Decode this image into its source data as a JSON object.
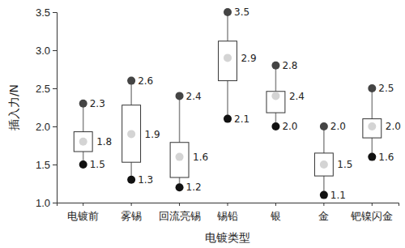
{
  "chart_data": {
    "type": "box",
    "x_label": "电镀类型",
    "y_label": "插入力/N",
    "categories": [
      "电镀前",
      "雾锡",
      "回流亮锡",
      "锡铅",
      "银",
      "金",
      "钯镍闪金"
    ],
    "max": {
      "values": [
        2.3,
        2.6,
        2.4,
        3.5,
        2.8,
        2.0,
        2.5
      ],
      "value_labels": [
        "2.3",
        "2.6",
        "2.4",
        "3.5",
        "2.8",
        "2.0",
        "2.5"
      ]
    },
    "mean": {
      "values": [
        1.8,
        1.9,
        1.6,
        2.9,
        2.4,
        1.5,
        2.0
      ],
      "value_labels": [
        "1.8",
        "1.9",
        "1.6",
        "2.9",
        "2.4",
        "1.5",
        "2.0"
      ]
    },
    "min": {
      "values": [
        1.5,
        1.3,
        1.2,
        2.1,
        2.0,
        1.1,
        1.6
      ],
      "value_labels": [
        "1.5",
        "1.3",
        "1.2",
        "2.1",
        "2.0",
        "1.1",
        "1.6"
      ]
    },
    "q1": [
      1.67,
      1.53,
      1.33,
      2.6,
      2.18,
      1.35,
      1.85
    ],
    "q3": [
      1.93,
      2.28,
      1.79,
      3.12,
      2.46,
      1.65,
      2.1
    ],
    "ylim": [
      1.0,
      3.5
    ],
    "yticks": [
      {
        "value": 1.0,
        "label": "1.0"
      },
      1.5,
      {
        "value": 2.0,
        "label": "2.0"
      },
      2.5,
      {
        "value": 3.0,
        "label": "3.0"
      },
      3.5
    ],
    "data_labels": true,
    "grid": false
  }
}
